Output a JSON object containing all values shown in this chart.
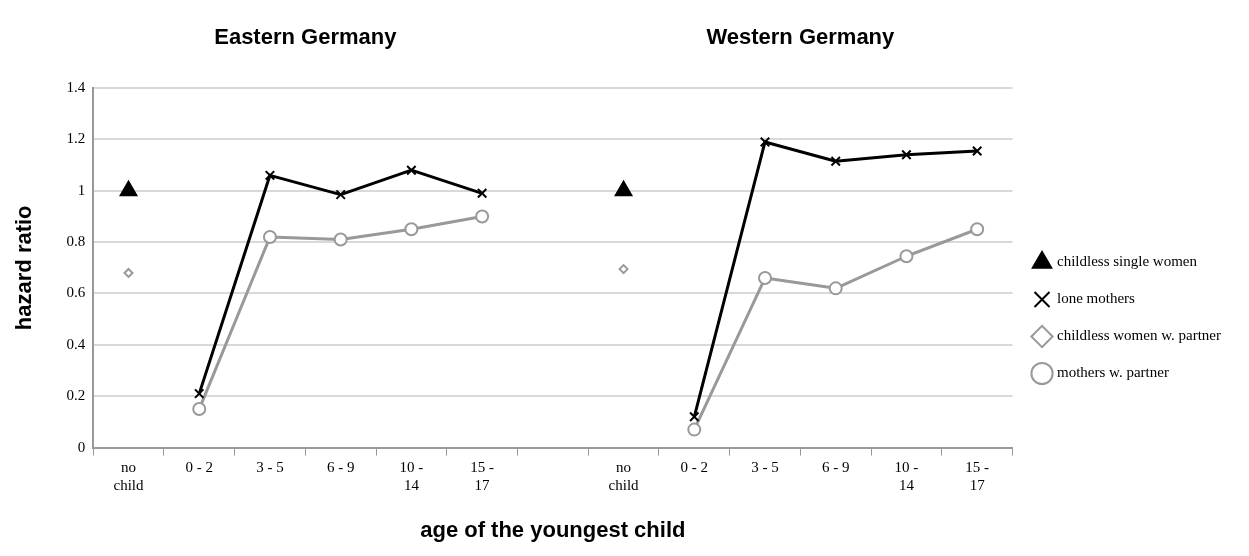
{
  "chart_data": {
    "type": "line",
    "xlabel": "age of the youngest child",
    "ylabel": "hazard ratio",
    "annotations": [
      "Eastern Germany",
      "Western Germany"
    ],
    "categories": [
      "no child",
      "0 - 2",
      "3 - 5",
      "6 - 9",
      "10 - 14",
      "15 - 17",
      null,
      "no child",
      "0 - 2",
      "3 - 5",
      "6 - 9",
      "10 - 14",
      "15 - 17"
    ],
    "series": [
      {
        "name": "childless single women",
        "type": "scatter",
        "marker": "triangle",
        "color": "#000000",
        "values": [
          1.0,
          null,
          null,
          null,
          null,
          null,
          null,
          1.0,
          null,
          null,
          null,
          null,
          null
        ]
      },
      {
        "name": "lone mothers",
        "type": "line",
        "marker": "cross",
        "color": "#000000",
        "values": [
          null,
          0.21,
          1.06,
          0.985,
          1.08,
          0.99,
          null,
          null,
          0.12,
          1.19,
          1.115,
          1.14,
          1.155
        ]
      },
      {
        "name": "childless women w. partner",
        "type": "scatter",
        "marker": "diamond",
        "color": "#999999",
        "values": [
          0.68,
          null,
          null,
          null,
          null,
          null,
          null,
          0.695,
          null,
          null,
          null,
          null,
          null
        ]
      },
      {
        "name": "mothers w. partner",
        "type": "line",
        "marker": "circle",
        "color": "#999999",
        "values": [
          null,
          0.15,
          0.82,
          0.81,
          0.85,
          0.9,
          null,
          null,
          0.07,
          0.66,
          0.62,
          0.745,
          0.85
        ]
      }
    ],
    "ylim": [
      0,
      1.4
    ],
    "yticks": [
      0,
      0.2,
      0.4,
      0.6,
      0.8,
      1,
      1.2,
      1.4
    ],
    "grid": "y",
    "legend": "right"
  }
}
